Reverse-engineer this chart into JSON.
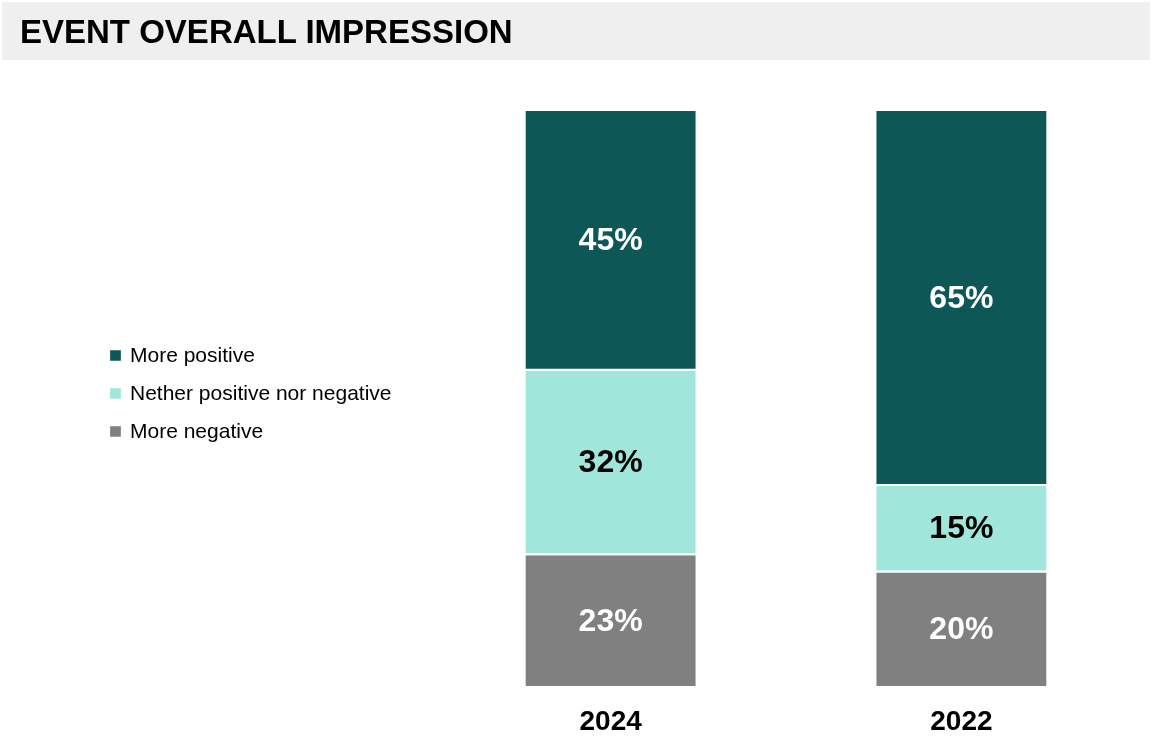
{
  "chart_data": {
    "type": "bar",
    "title": "EVENT OVERALL IMPRESSION",
    "categories": [
      "2024",
      "2022"
    ],
    "stacked": true,
    "ylim": [
      0,
      100
    ],
    "tick_labels": "x",
    "grid": false,
    "legend": "left",
    "series": [
      {
        "name": "More negative",
        "color": "#808080",
        "values": [
          23,
          20
        ],
        "value_labels": [
          "23%",
          "20%"
        ]
      },
      {
        "name": "Nether positive nor negative",
        "color": "#a0e6da",
        "values": [
          32,
          15
        ],
        "value_labels": [
          "32%",
          "15%"
        ]
      },
      {
        "name": "More positive",
        "color": "#0e5757",
        "values": [
          45,
          65
        ],
        "value_labels": [
          "45%",
          "65%"
        ]
      }
    ]
  }
}
